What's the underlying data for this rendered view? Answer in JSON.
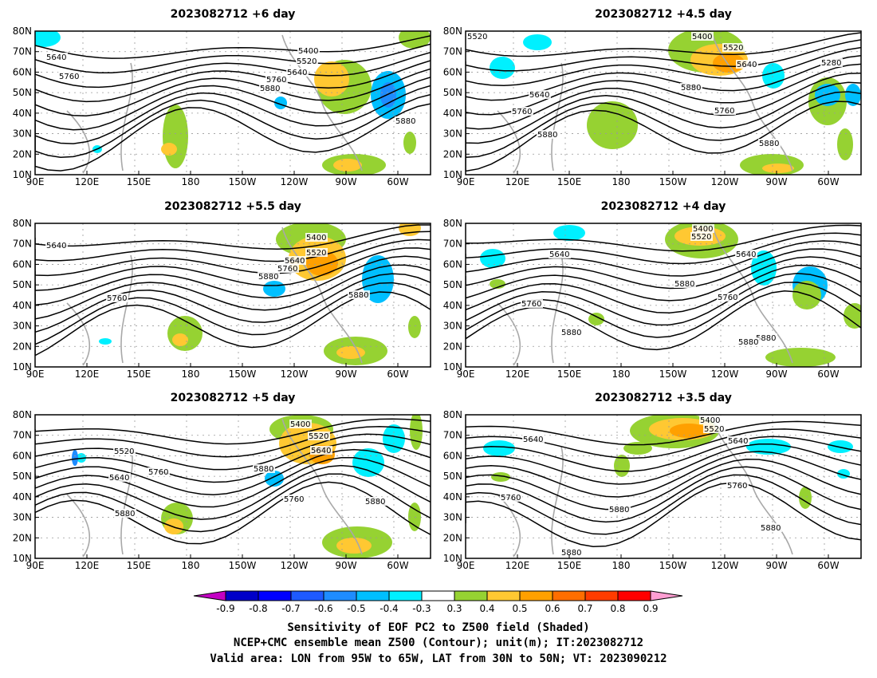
{
  "panels": [
    {
      "title": "2023082712  +6 day",
      "contour_labels": [
        "5400",
        "5520",
        "5640",
        "5760",
        "5880",
        "5640",
        "5760",
        "5880"
      ]
    },
    {
      "title": "2023082712  +4.5 day",
      "contour_labels": [
        "5400",
        "5520",
        "5640",
        "5280",
        "5520",
        "5640",
        "5760",
        "5880",
        "5880",
        "5760",
        "5880"
      ]
    },
    {
      "title": "2023082712  +5.5 day",
      "contour_labels": [
        "5400",
        "5520",
        "5640",
        "5760",
        "5880",
        "5640",
        "5760",
        "5880"
      ]
    },
    {
      "title": "2023082712  +4 day",
      "contour_labels": [
        "5400",
        "5520",
        "5640",
        "5640",
        "5880",
        "5760",
        "5760",
        "5880",
        "5880",
        "5880"
      ]
    },
    {
      "title": "2023082712  +5 day",
      "contour_labels": [
        "5400",
        "5520",
        "5640",
        "5520",
        "5640",
        "5760",
        "5880",
        "5760",
        "5880",
        "5880"
      ]
    },
    {
      "title": "2023082712  +3.5 day",
      "contour_labels": [
        "5400",
        "5520",
        "5640",
        "5640",
        "5760",
        "5880",
        "5760",
        "5880",
        "5880"
      ]
    }
  ],
  "lat_ticks": [
    "80N",
    "70N",
    "60N",
    "50N",
    "40N",
    "30N",
    "20N",
    "10N"
  ],
  "lon_ticks": [
    "90E",
    "120E",
    "150E",
    "180",
    "150W",
    "120W",
    "90W",
    "60W"
  ],
  "colorbar": {
    "labels": [
      "-0.9",
      "-0.8",
      "-0.7",
      "-0.6",
      "-0.5",
      "-0.4",
      "-0.3",
      "0.3",
      "0.4",
      "0.5",
      "0.6",
      "0.7",
      "0.8",
      "0.9"
    ],
    "colors": [
      "#c300c3",
      "#0000c8",
      "#0000ff",
      "#1e5aff",
      "#1e8cff",
      "#00bfff",
      "#00f0ff",
      "#ffffff",
      "#96d232",
      "#ffc832",
      "#ffa000",
      "#ff6e00",
      "#ff3c00",
      "#ff0000",
      "#ff9ed2"
    ]
  },
  "caption": {
    "line1": "Sensitivity of EOF PC2 to Z500 field (Shaded)",
    "line2": "NCEP+CMC ensemble mean Z500 (Contour); unit(m); IT:2023082712",
    "line3": "Valid area: LON from 95W to 65W, LAT from 30N to 50N; VT: 2023090212"
  }
}
